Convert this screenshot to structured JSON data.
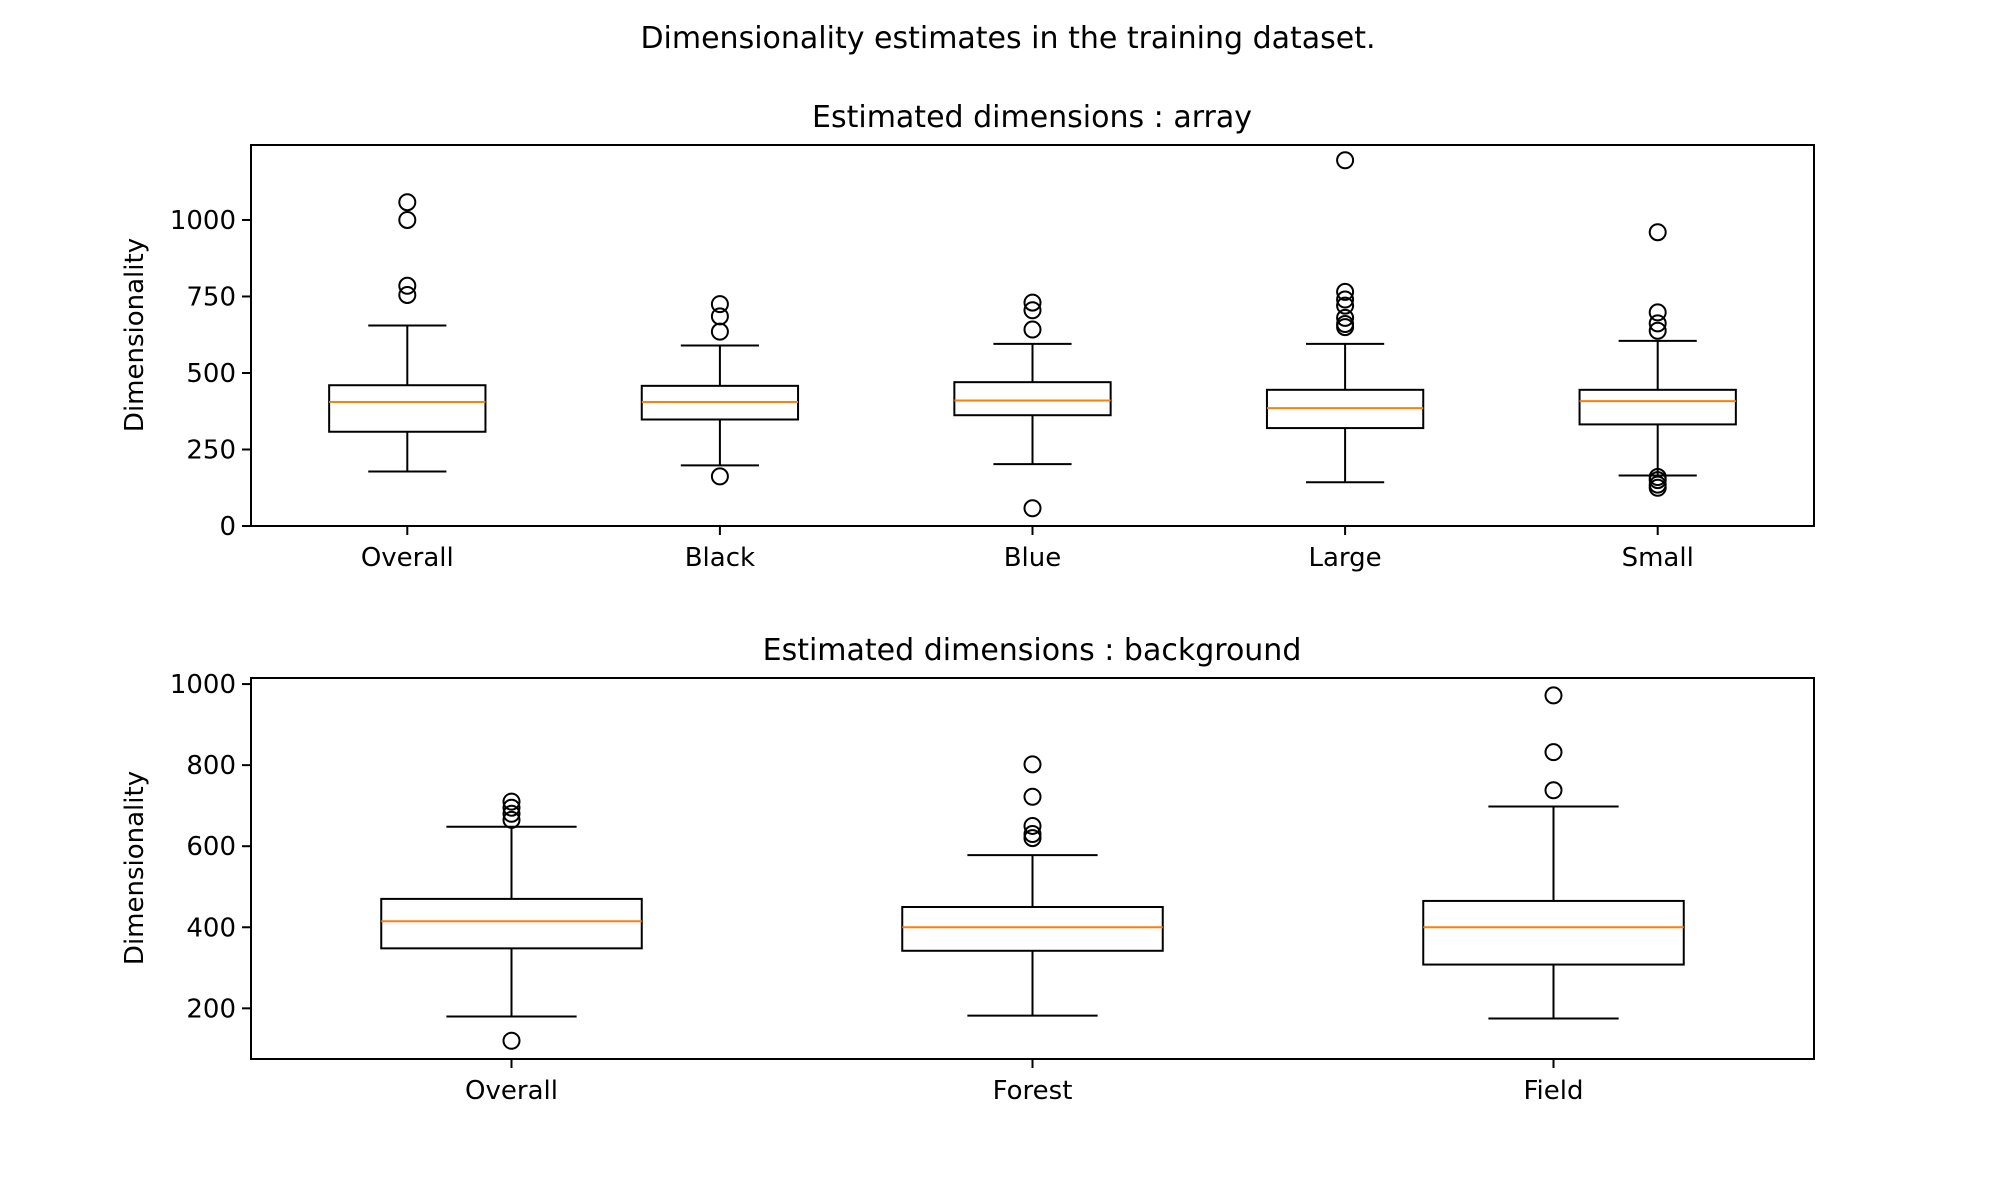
{
  "figure": {
    "suptitle": "Dimensionality estimates in the training dataset.",
    "median_color": "#ff7f0e",
    "line_color": "#000000"
  },
  "chart_data": [
    {
      "type": "boxplot",
      "title": "Estimated dimensions : array",
      "ylabel": "Dimensionality",
      "xlabel": "",
      "ylim": [
        0,
        1245
      ],
      "yticks": [
        0,
        250,
        500,
        750,
        1000
      ],
      "categories": [
        "Overall",
        "Black",
        "Blue",
        "Large",
        "Small"
      ],
      "boxes": [
        {
          "label": "Overall",
          "whislo": 178,
          "q1": 308,
          "med": 405,
          "q3": 460,
          "whishi": 655,
          "fliers": [
            755,
            785,
            1000,
            1058
          ]
        },
        {
          "label": "Black",
          "whislo": 198,
          "q1": 348,
          "med": 405,
          "q3": 458,
          "whishi": 590,
          "fliers": [
            162,
            635,
            685,
            725
          ]
        },
        {
          "label": "Blue",
          "whislo": 202,
          "q1": 362,
          "med": 410,
          "q3": 470,
          "whishi": 595,
          "fliers": [
            58,
            642,
            705,
            730
          ]
        },
        {
          "label": "Large",
          "whislo": 143,
          "q1": 320,
          "med": 385,
          "q3": 445,
          "whishi": 595,
          "fliers": [
            650,
            660,
            680,
            720,
            740,
            765,
            1195
          ]
        },
        {
          "label": "Small",
          "whislo": 165,
          "q1": 332,
          "med": 408,
          "q3": 445,
          "whishi": 605,
          "fliers": [
            125,
            135,
            150,
            160,
            638,
            662,
            698,
            960
          ]
        }
      ]
    },
    {
      "type": "boxplot",
      "title": "Estimated dimensions : background",
      "ylabel": "Dimensionality",
      "xlabel": "",
      "ylim": [
        75,
        1015
      ],
      "yticks": [
        200,
        400,
        600,
        800,
        1000
      ],
      "categories": [
        "Overall",
        "Forest",
        "Field"
      ],
      "boxes": [
        {
          "label": "Overall",
          "whislo": 180,
          "q1": 348,
          "med": 415,
          "q3": 470,
          "whishi": 648,
          "fliers": [
            120,
            665,
            680,
            695,
            710
          ]
        },
        {
          "label": "Forest",
          "whislo": 182,
          "q1": 342,
          "med": 400,
          "q3": 450,
          "whishi": 578,
          "fliers": [
            620,
            630,
            650,
            722,
            802
          ]
        },
        {
          "label": "Field",
          "whislo": 175,
          "q1": 308,
          "med": 400,
          "q3": 465,
          "whishi": 698,
          "fliers": [
            738,
            832,
            972
          ]
        }
      ]
    }
  ]
}
